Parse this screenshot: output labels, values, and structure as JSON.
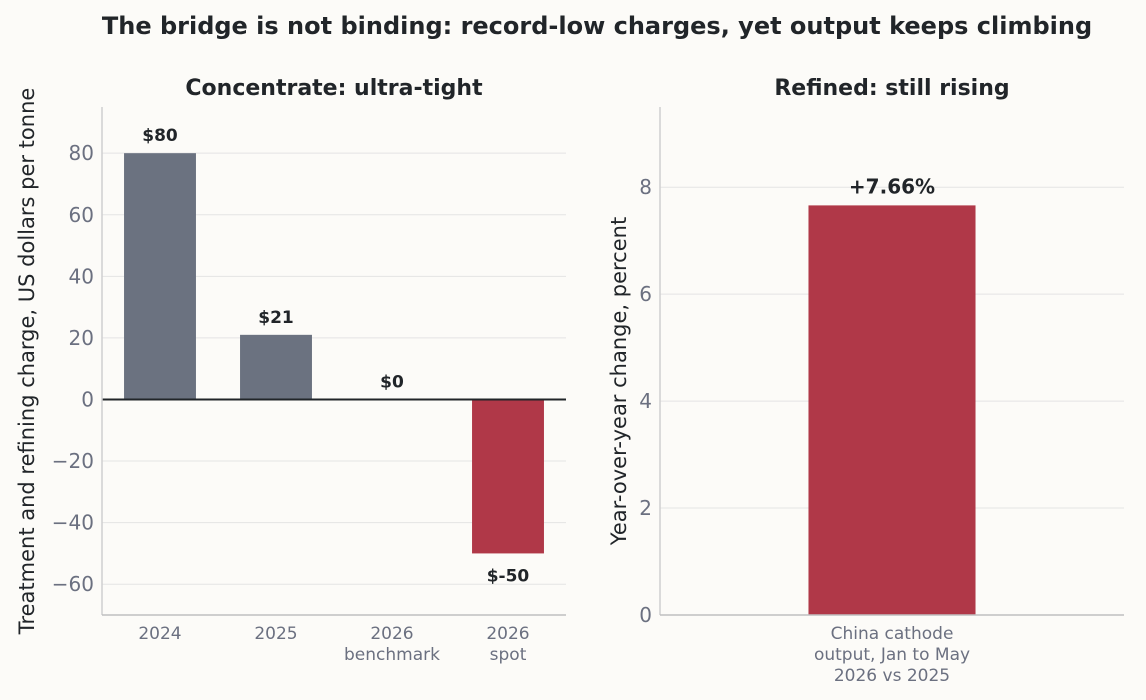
{
  "figure": {
    "title": "The bridge is not binding: record-low charges, yet output keeps climbing",
    "background": "#fcfbf8"
  },
  "chart_data": [
    {
      "type": "bar",
      "title": "Concentrate: ultra-tight",
      "ylabel": "Treatment and refining charge, US dollars per tonne",
      "xlabel": "",
      "categories": [
        [
          "2024"
        ],
        [
          "2025"
        ],
        [
          "2026",
          "benchmark"
        ],
        [
          "2026",
          "spot"
        ]
      ],
      "values": [
        80,
        21,
        0,
        -50
      ],
      "data_labels": [
        "$80",
        "$21",
        "$0",
        "$-50"
      ],
      "colors": [
        "#6b7280",
        "#6b7280",
        "#6b7280",
        "#b03848"
      ],
      "ylim": [
        -70,
        95
      ],
      "yticks": [
        -60,
        -40,
        -20,
        0,
        20,
        40,
        60,
        80
      ],
      "ytick_labels": [
        "−60",
        "−40",
        "−20",
        "0",
        "20",
        "40",
        "60",
        "80"
      ],
      "grid": true,
      "zero_line": true
    },
    {
      "type": "bar",
      "title": "Refined: still rising",
      "ylabel": "Year-over-year change, percent",
      "xlabel": "",
      "categories": [
        [
          "China cathode",
          "output, Jan to May",
          "2026 vs 2025"
        ]
      ],
      "values": [
        7.66
      ],
      "data_labels": [
        "+7.66%"
      ],
      "colors": [
        "#b03848"
      ],
      "ylim": [
        0,
        9.5
      ],
      "yticks": [
        0,
        2,
        4,
        6,
        8
      ],
      "ytick_labels": [
        "0",
        "2",
        "4",
        "6",
        "8"
      ],
      "grid": true,
      "zero_line": false
    }
  ]
}
